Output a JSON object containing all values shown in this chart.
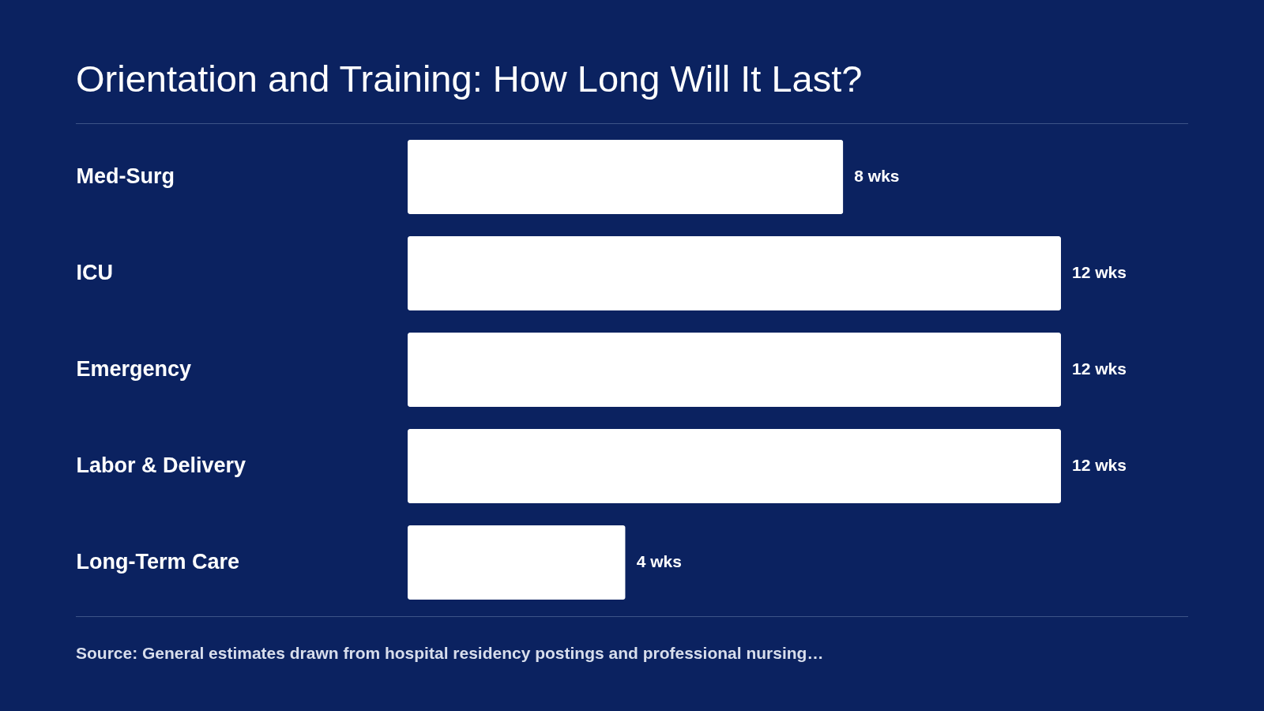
{
  "chart_data": {
    "type": "bar",
    "orientation": "horizontal",
    "title": "Orientation and Training: How Long Will It Last?",
    "categories": [
      "Med-Surg",
      "ICU",
      "Emergency",
      "Labor & Delivery",
      "Long-Term Care"
    ],
    "values": [
      8,
      12,
      12,
      12,
      4
    ],
    "value_labels": [
      "8 wks",
      "12 wks",
      "12 wks",
      "12 wks",
      "4 wks"
    ],
    "color": "#ffffff",
    "tick_labels": "y",
    "annotations": [
      "Source: General estimates drawn from hospital residency postings and professional nursing…"
    ]
  }
}
